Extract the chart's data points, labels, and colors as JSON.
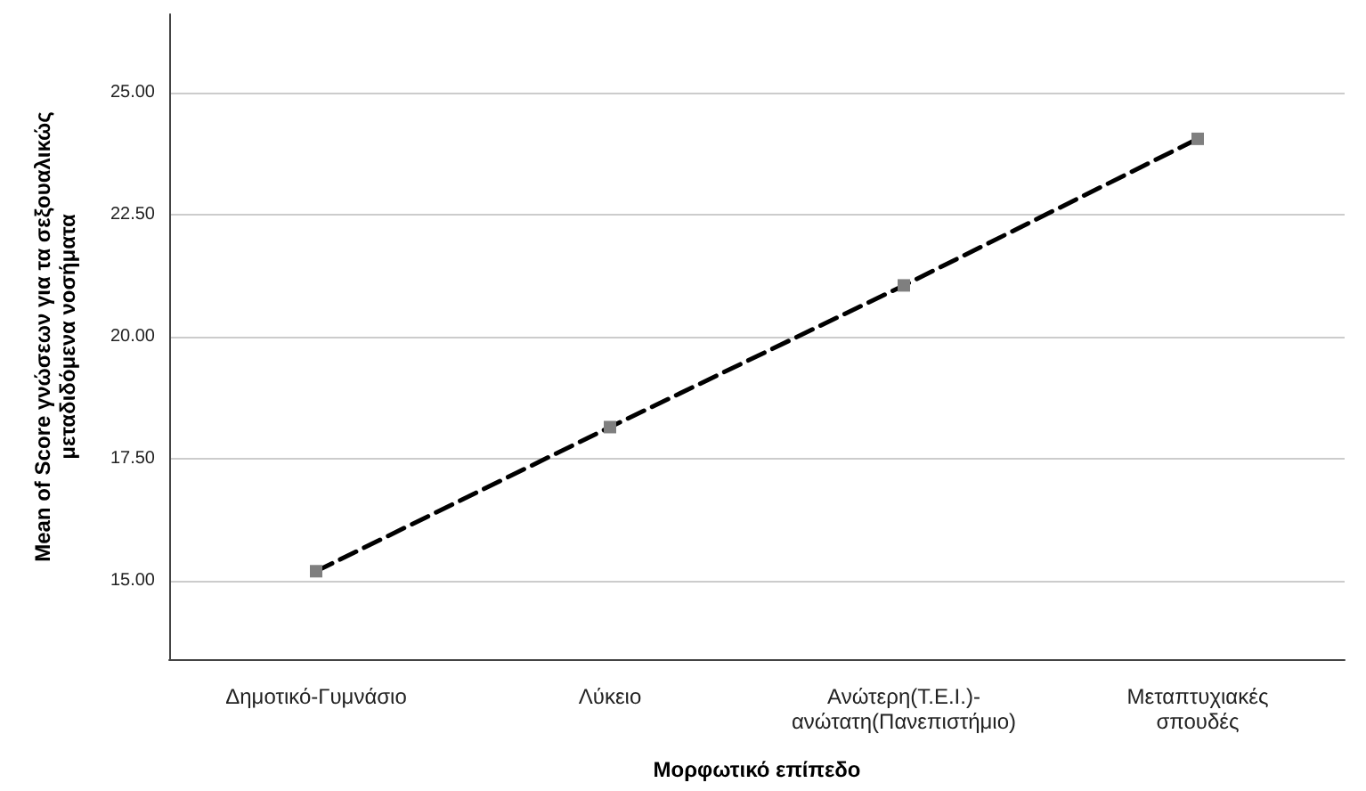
{
  "chart_data": {
    "type": "line",
    "xlabel": "Μορφωτικό επίπεδο",
    "ylabel": "Mean of Score γνώσεων για τα σεξουαλικώς\nμεταδιδόμενα νοσήματα",
    "categories": [
      "Δημοτικό-Γυμνάσιο",
      "Λύκειο",
      "Ανώτερη(Τ.Ε.Ι.)-\nανώτατη(Πανεπιστήμιο)",
      "Μεταπτυχιακές\nσπουδές"
    ],
    "series": [
      {
        "color": "#000000",
        "values": [
          15.2,
          18.15,
          21.05,
          24.05
        ]
      }
    ],
    "ylim": [
      13.4,
      26.6
    ],
    "yticks": [
      {
        "value": 15,
        "label": "15.00"
      },
      {
        "value": 17.5,
        "label": "17.50"
      },
      {
        "value": 20,
        "label": "20.00"
      },
      {
        "value": 22.5,
        "label": "22.50"
      },
      {
        "value": 25,
        "label": "25.00"
      }
    ],
    "grid": "y",
    "marker": "square",
    "line_style": "dashed"
  }
}
